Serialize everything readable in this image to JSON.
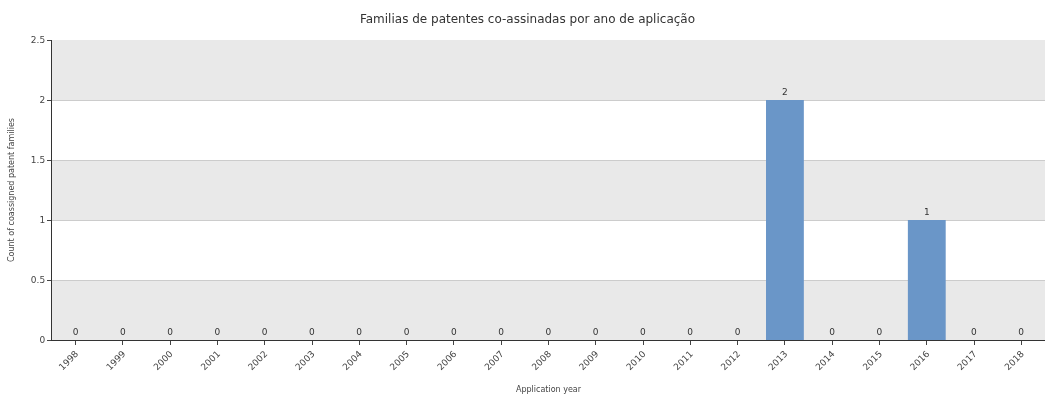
{
  "chart_data": {
    "type": "bar",
    "title": "Familias de patentes co-assinadas por ano de aplicação",
    "xlabel": "Application year",
    "ylabel": "Count of coassigned patent families",
    "categories": [
      "1998",
      "1999",
      "2000",
      "2001",
      "2002",
      "2003",
      "2004",
      "2005",
      "2006",
      "2007",
      "2008",
      "2009",
      "2010",
      "2011",
      "2012",
      "2013",
      "2014",
      "2015",
      "2016",
      "2017",
      "2018"
    ],
    "values": [
      0,
      0,
      0,
      0,
      0,
      0,
      0,
      0,
      0,
      0,
      0,
      0,
      0,
      0,
      0,
      2,
      0,
      0,
      1,
      0,
      0
    ],
    "color": "#6a96c8",
    "ylim": [
      0,
      2.5
    ],
    "yticks": [
      0,
      0.5,
      1,
      1.5,
      2,
      2.5
    ],
    "grid": "y",
    "data_labels": true,
    "legend": false,
    "bands": [
      {
        "axis": "y",
        "from": 0,
        "to": 0.5,
        "color": "#e9e9e9"
      },
      {
        "axis": "y",
        "from": 1,
        "to": 1.5,
        "color": "#e9e9e9"
      },
      {
        "axis": "y",
        "from": 2,
        "to": 2.5,
        "color": "#e9e9e9"
      }
    ]
  }
}
